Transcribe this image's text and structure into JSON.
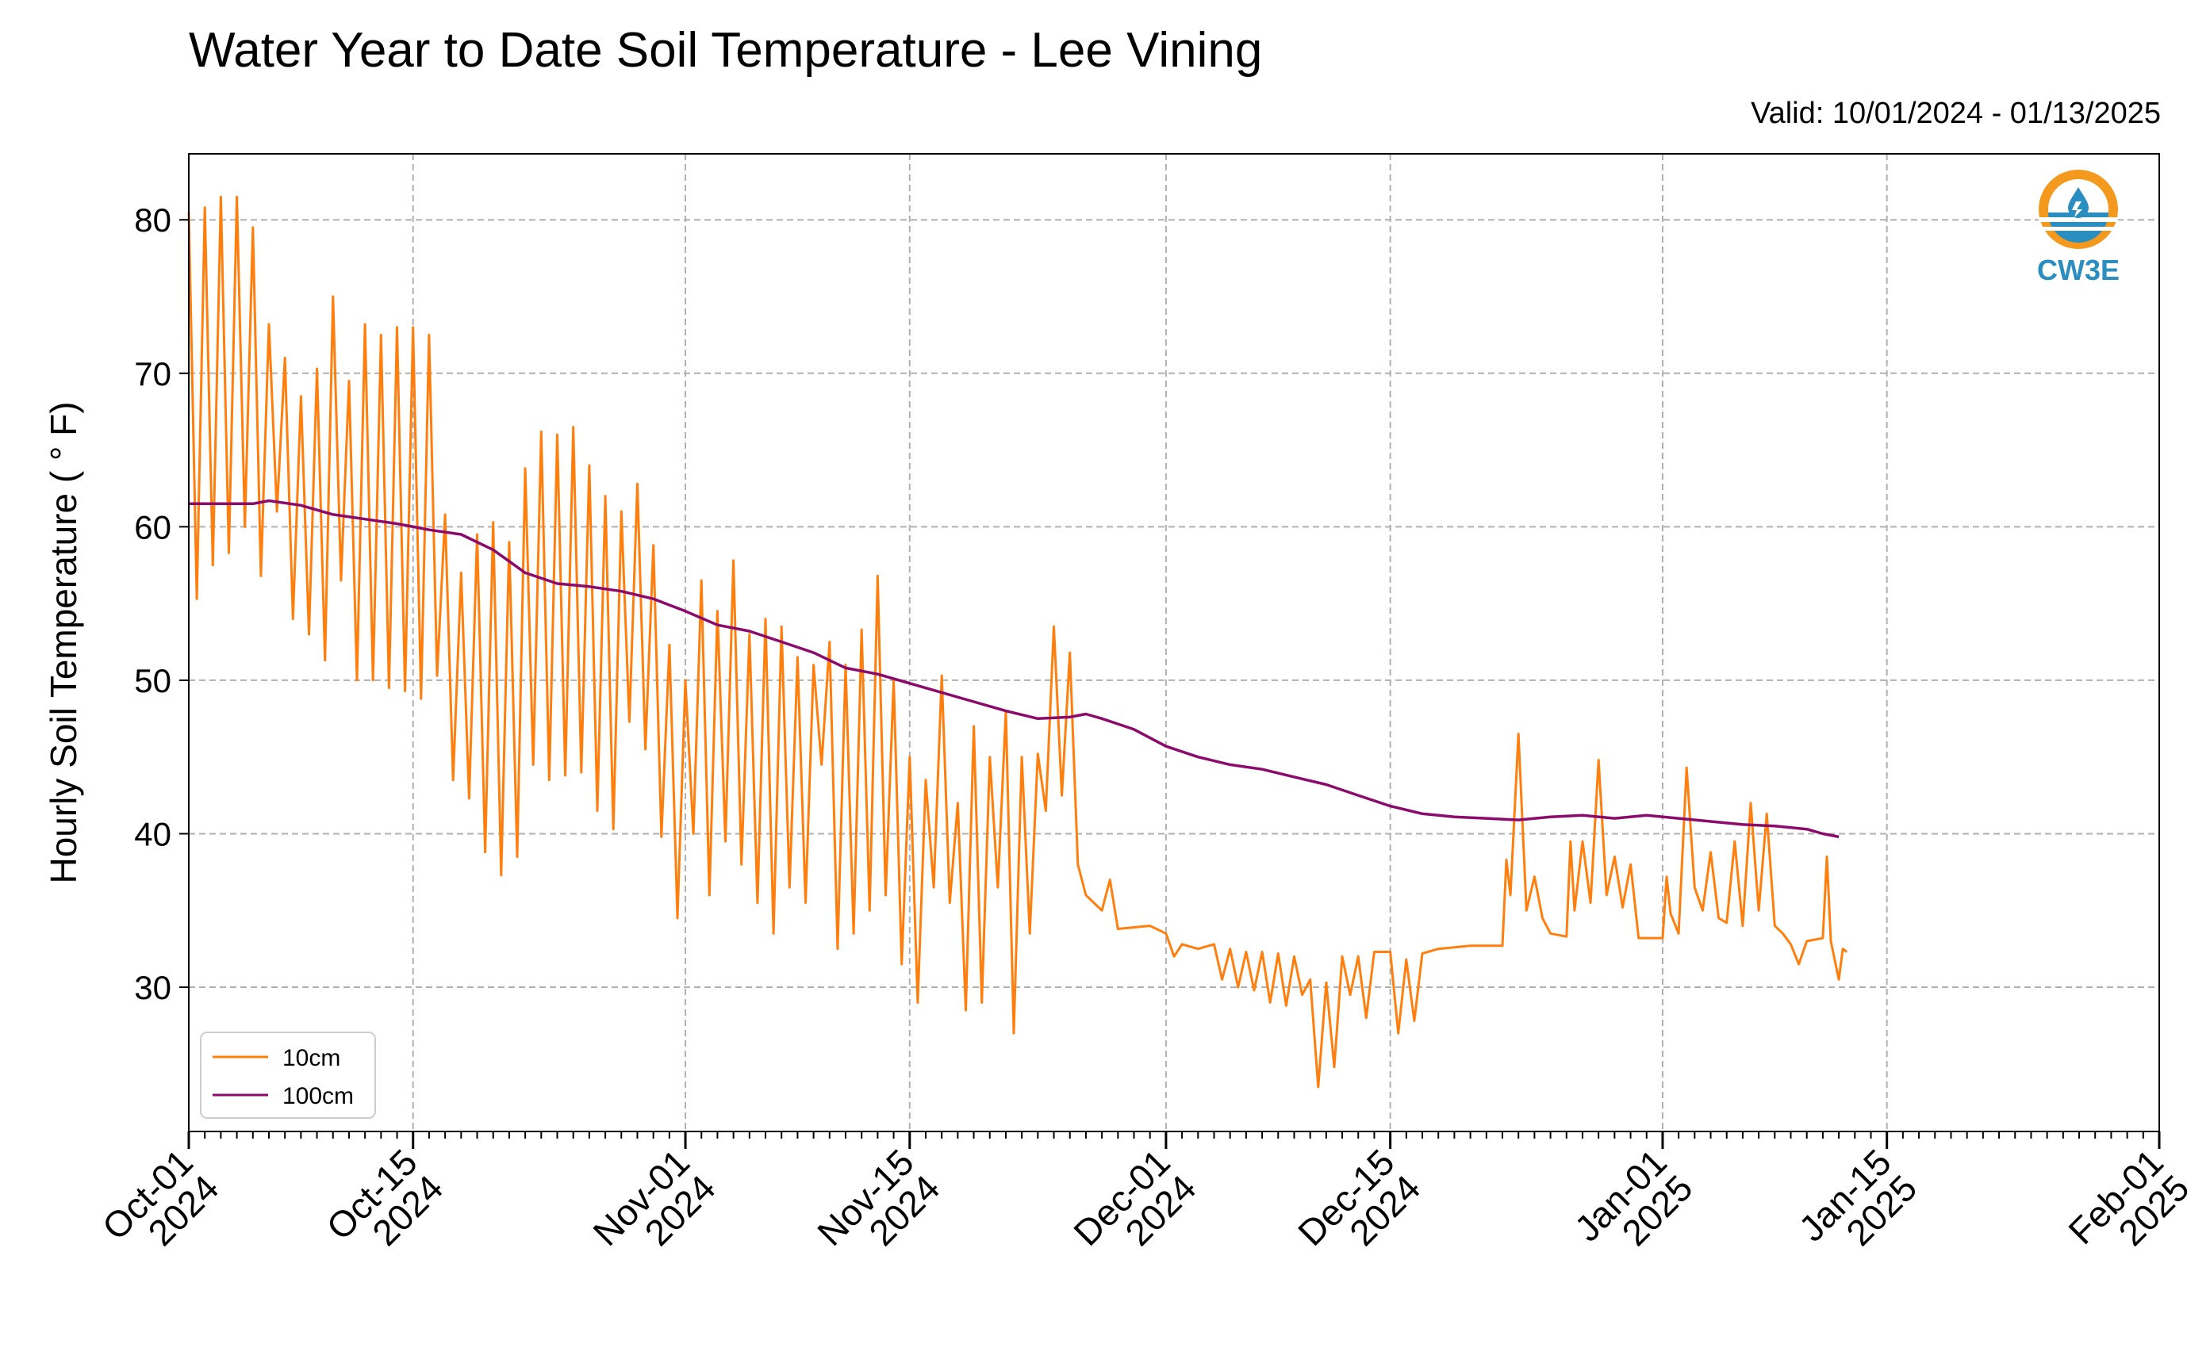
{
  "chart_data": {
    "type": "line",
    "title": "Water Year to Date Soil Temperature - Lee Vining",
    "subtitle": "Valid: 10/01/2024 - 01/13/2025",
    "ylabel": "Hourly Soil Temperature ( ° F)",
    "xlabel": "",
    "ylim": [
      20.6,
      84.3
    ],
    "xlim": [
      "2024-10-01",
      "2025-02-01"
    ],
    "yticks": [
      30,
      40,
      50,
      60,
      70,
      80
    ],
    "xticks": [
      {
        "date": "2024-10-01",
        "label1": "Oct-01",
        "label2": "2024"
      },
      {
        "date": "2024-10-15",
        "label1": "Oct-15",
        "label2": "2024"
      },
      {
        "date": "2024-11-01",
        "label1": "Nov-01",
        "label2": "2024"
      },
      {
        "date": "2024-11-15",
        "label1": "Nov-15",
        "label2": "2024"
      },
      {
        "date": "2024-12-01",
        "label1": "Dec-01",
        "label2": "2024"
      },
      {
        "date": "2024-12-15",
        "label1": "Dec-15",
        "label2": "2024"
      },
      {
        "date": "2025-01-01",
        "label1": "Jan-01",
        "label2": "2025"
      },
      {
        "date": "2025-01-15",
        "label1": "Jan-15",
        "label2": "2025"
      },
      {
        "date": "2025-02-01",
        "label1": "Feb-01",
        "label2": "2025"
      }
    ],
    "grid": true,
    "legend_position": "lower-left",
    "series": [
      {
        "name": "10cm",
        "color": "#ff7f0e",
        "points": [
          [
            "2024-10-01",
            80.5
          ],
          [
            "2024-10-01T12:00",
            55.3
          ],
          [
            "2024-10-02",
            80.8
          ],
          [
            "2024-10-02T12:00",
            57.5
          ],
          [
            "2024-10-03",
            81.5
          ],
          [
            "2024-10-03T12:00",
            58.3
          ],
          [
            "2024-10-04",
            81.5
          ],
          [
            "2024-10-04T12:00",
            60.0
          ],
          [
            "2024-10-05",
            79.5
          ],
          [
            "2024-10-05T12:00",
            56.8
          ],
          [
            "2024-10-06",
            73.2
          ],
          [
            "2024-10-06T12:00",
            61.0
          ],
          [
            "2024-10-07",
            71.0
          ],
          [
            "2024-10-07T12:00",
            54.0
          ],
          [
            "2024-10-08",
            68.5
          ],
          [
            "2024-10-08T12:00",
            53.0
          ],
          [
            "2024-10-09",
            70.3
          ],
          [
            "2024-10-09T12:00",
            51.3
          ],
          [
            "2024-10-10",
            75.0
          ],
          [
            "2024-10-10T12:00",
            56.5
          ],
          [
            "2024-10-11",
            69.5
          ],
          [
            "2024-10-11T12:00",
            50.0
          ],
          [
            "2024-10-12",
            73.2
          ],
          [
            "2024-10-12T12:00",
            50.0
          ],
          [
            "2024-10-13",
            72.5
          ],
          [
            "2024-10-13T12:00",
            49.5
          ],
          [
            "2024-10-14",
            73.0
          ],
          [
            "2024-10-14T12:00",
            49.3
          ],
          [
            "2024-10-15",
            73.0
          ],
          [
            "2024-10-15T12:00",
            48.8
          ],
          [
            "2024-10-16",
            72.5
          ],
          [
            "2024-10-16T12:00",
            50.3
          ],
          [
            "2024-10-17",
            60.8
          ],
          [
            "2024-10-17T12:00",
            43.5
          ],
          [
            "2024-10-18",
            57.0
          ],
          [
            "2024-10-18T12:00",
            42.3
          ],
          [
            "2024-10-19",
            59.5
          ],
          [
            "2024-10-19T12:00",
            38.8
          ],
          [
            "2024-10-20",
            60.3
          ],
          [
            "2024-10-20T12:00",
            37.3
          ],
          [
            "2024-10-21",
            59.0
          ],
          [
            "2024-10-21T12:00",
            38.5
          ],
          [
            "2024-10-22",
            63.8
          ],
          [
            "2024-10-22T12:00",
            44.5
          ],
          [
            "2024-10-23",
            66.2
          ],
          [
            "2024-10-23T12:00",
            43.5
          ],
          [
            "2024-10-24",
            66.0
          ],
          [
            "2024-10-24T12:00",
            43.8
          ],
          [
            "2024-10-25",
            66.5
          ],
          [
            "2024-10-25T12:00",
            44.0
          ],
          [
            "2024-10-26",
            64.0
          ],
          [
            "2024-10-26T12:00",
            41.5
          ],
          [
            "2024-10-27",
            62.0
          ],
          [
            "2024-10-27T12:00",
            40.3
          ],
          [
            "2024-10-28",
            61.0
          ],
          [
            "2024-10-28T12:00",
            47.3
          ],
          [
            "2024-10-29",
            62.8
          ],
          [
            "2024-10-29T12:00",
            45.5
          ],
          [
            "2024-10-30",
            58.8
          ],
          [
            "2024-10-30T12:00",
            39.8
          ],
          [
            "2024-10-31",
            52.3
          ],
          [
            "2024-10-31T12:00",
            34.5
          ],
          [
            "2024-11-01",
            50.0
          ],
          [
            "2024-11-01T12:00",
            40.0
          ],
          [
            "2024-11-02",
            56.5
          ],
          [
            "2024-11-02T12:00",
            36.0
          ],
          [
            "2024-11-03",
            54.5
          ],
          [
            "2024-11-03T12:00",
            39.5
          ],
          [
            "2024-11-04",
            57.8
          ],
          [
            "2024-11-04T12:00",
            38.0
          ],
          [
            "2024-11-05",
            53.0
          ],
          [
            "2024-11-05T12:00",
            35.5
          ],
          [
            "2024-11-06",
            54.0
          ],
          [
            "2024-11-06T12:00",
            33.5
          ],
          [
            "2024-11-07",
            53.5
          ],
          [
            "2024-11-07T12:00",
            36.5
          ],
          [
            "2024-11-08",
            51.5
          ],
          [
            "2024-11-08T12:00",
            35.5
          ],
          [
            "2024-11-09",
            51.0
          ],
          [
            "2024-11-09T12:00",
            44.5
          ],
          [
            "2024-11-10",
            52.5
          ],
          [
            "2024-11-10T12:00",
            32.5
          ],
          [
            "2024-11-11",
            51.0
          ],
          [
            "2024-11-11T12:00",
            33.5
          ],
          [
            "2024-11-12",
            53.3
          ],
          [
            "2024-11-12T12:00",
            35.0
          ],
          [
            "2024-11-13",
            56.8
          ],
          [
            "2024-11-13T12:00",
            36.0
          ],
          [
            "2024-11-14",
            50.0
          ],
          [
            "2024-11-14T12:00",
            31.5
          ],
          [
            "2024-11-15",
            45.0
          ],
          [
            "2024-11-15T12:00",
            29.0
          ],
          [
            "2024-11-16",
            43.5
          ],
          [
            "2024-11-16T12:00",
            36.5
          ],
          [
            "2024-11-17",
            50.3
          ],
          [
            "2024-11-17T12:00",
            35.5
          ],
          [
            "2024-11-18",
            42.0
          ],
          [
            "2024-11-18T12:00",
            28.5
          ],
          [
            "2024-11-19",
            47.0
          ],
          [
            "2024-11-19T12:00",
            29.0
          ],
          [
            "2024-11-20",
            45.0
          ],
          [
            "2024-11-20T12:00",
            36.5
          ],
          [
            "2024-11-21",
            48.0
          ],
          [
            "2024-11-21T12:00",
            27.0
          ],
          [
            "2024-11-22",
            45.0
          ],
          [
            "2024-11-22T12:00",
            33.5
          ],
          [
            "2024-11-23",
            45.2
          ],
          [
            "2024-11-23T12:00",
            41.5
          ],
          [
            "2024-11-24",
            53.5
          ],
          [
            "2024-11-24T12:00",
            42.5
          ],
          [
            "2024-11-25",
            51.8
          ],
          [
            "2024-11-25T12:00",
            38.0
          ],
          [
            "2024-11-26",
            36.0
          ],
          [
            "2024-11-27",
            35.0
          ],
          [
            "2024-11-27T12:00",
            37.0
          ],
          [
            "2024-11-28",
            33.8
          ],
          [
            "2024-11-30",
            34.0
          ],
          [
            "2024-12-01",
            33.5
          ],
          [
            "2024-12-01T12:00",
            32.0
          ],
          [
            "2024-12-02",
            32.8
          ],
          [
            "2024-12-03",
            32.5
          ],
          [
            "2024-12-04",
            32.8
          ],
          [
            "2024-12-04T12:00",
            30.5
          ],
          [
            "2024-12-05",
            32.5
          ],
          [
            "2024-12-05T12:00",
            30.0
          ],
          [
            "2024-12-06",
            32.3
          ],
          [
            "2024-12-06T12:00",
            29.8
          ],
          [
            "2024-12-07",
            32.3
          ],
          [
            "2024-12-07T12:00",
            29.0
          ],
          [
            "2024-12-08",
            32.2
          ],
          [
            "2024-12-08T12:00",
            28.8
          ],
          [
            "2024-12-09",
            32.0
          ],
          [
            "2024-12-09T12:00",
            29.5
          ],
          [
            "2024-12-10",
            30.5
          ],
          [
            "2024-12-10T12:00",
            23.5
          ],
          [
            "2024-12-11",
            30.3
          ],
          [
            "2024-12-11T12:00",
            24.8
          ],
          [
            "2024-12-12",
            32.0
          ],
          [
            "2024-12-12T12:00",
            29.5
          ],
          [
            "2024-12-13",
            32.0
          ],
          [
            "2024-12-13T12:00",
            28.0
          ],
          [
            "2024-12-14",
            32.3
          ],
          [
            "2024-12-15",
            32.3
          ],
          [
            "2024-12-15T12:00",
            27.0
          ],
          [
            "2024-12-16",
            31.8
          ],
          [
            "2024-12-16T12:00",
            27.8
          ],
          [
            "2024-12-17",
            32.2
          ],
          [
            "2024-12-18",
            32.5
          ],
          [
            "2024-12-20",
            32.7
          ],
          [
            "2024-12-22",
            32.7
          ],
          [
            "2024-12-22T06:00",
            38.3
          ],
          [
            "2024-12-22T12:00",
            36.0
          ],
          [
            "2024-12-23",
            46.5
          ],
          [
            "2024-12-23T12:00",
            35.0
          ],
          [
            "2024-12-24",
            37.2
          ],
          [
            "2024-12-24T12:00",
            34.5
          ],
          [
            "2024-12-25",
            33.5
          ],
          [
            "2024-12-26",
            33.3
          ],
          [
            "2024-12-26T06:00",
            39.5
          ],
          [
            "2024-12-26T12:00",
            35.0
          ],
          [
            "2024-12-27",
            39.5
          ],
          [
            "2024-12-27T12:00",
            35.5
          ],
          [
            "2024-12-28",
            44.8
          ],
          [
            "2024-12-28T12:00",
            36.0
          ],
          [
            "2024-12-29",
            38.5
          ],
          [
            "2024-12-29T12:00",
            35.2
          ],
          [
            "2024-12-30",
            38.0
          ],
          [
            "2024-12-30T12:00",
            33.2
          ],
          [
            "2025-01-01",
            33.2
          ],
          [
            "2025-01-01T06:00",
            37.2
          ],
          [
            "2025-01-01T12:00",
            34.8
          ],
          [
            "2025-01-02",
            33.5
          ],
          [
            "2025-01-02T12:00",
            44.3
          ],
          [
            "2025-01-03",
            36.5
          ],
          [
            "2025-01-03T12:00",
            35.0
          ],
          [
            "2025-01-04",
            38.8
          ],
          [
            "2025-01-04T12:00",
            34.5
          ],
          [
            "2025-01-05",
            34.2
          ],
          [
            "2025-01-05T12:00",
            39.5
          ],
          [
            "2025-01-06",
            34.0
          ],
          [
            "2025-01-06T12:00",
            42.0
          ],
          [
            "2025-01-07",
            35.0
          ],
          [
            "2025-01-07T12:00",
            41.3
          ],
          [
            "2025-01-08",
            34.0
          ],
          [
            "2025-01-08T12:00",
            33.5
          ],
          [
            "2025-01-09",
            32.8
          ],
          [
            "2025-01-09T12:00",
            31.5
          ],
          [
            "2025-01-10",
            33.0
          ],
          [
            "2025-01-11",
            33.2
          ],
          [
            "2025-01-11T06:00",
            38.5
          ],
          [
            "2025-01-11T12:00",
            33.0
          ],
          [
            "2025-01-12",
            30.5
          ],
          [
            "2025-01-12T06:00",
            32.5
          ],
          [
            "2025-01-12T12:00",
            32.3
          ]
        ]
      },
      {
        "name": "100cm",
        "color": "#8b0a6b",
        "points": [
          [
            "2024-10-01",
            61.5
          ],
          [
            "2024-10-05",
            61.5
          ],
          [
            "2024-10-06",
            61.7
          ],
          [
            "2024-10-08",
            61.4
          ],
          [
            "2024-10-10",
            60.8
          ],
          [
            "2024-10-12",
            60.5
          ],
          [
            "2024-10-14",
            60.2
          ],
          [
            "2024-10-16",
            59.8
          ],
          [
            "2024-10-18",
            59.5
          ],
          [
            "2024-10-20",
            58.5
          ],
          [
            "2024-10-22",
            57.0
          ],
          [
            "2024-10-24",
            56.3
          ],
          [
            "2024-10-26",
            56.1
          ],
          [
            "2024-10-28",
            55.8
          ],
          [
            "2024-10-30",
            55.3
          ],
          [
            "2024-11-01",
            54.5
          ],
          [
            "2024-11-03",
            53.6
          ],
          [
            "2024-11-05",
            53.2
          ],
          [
            "2024-11-07",
            52.5
          ],
          [
            "2024-11-09",
            51.8
          ],
          [
            "2024-11-11",
            50.8
          ],
          [
            "2024-11-13",
            50.4
          ],
          [
            "2024-11-15",
            49.8
          ],
          [
            "2024-11-17",
            49.2
          ],
          [
            "2024-11-19",
            48.6
          ],
          [
            "2024-11-21",
            48.0
          ],
          [
            "2024-11-23",
            47.5
          ],
          [
            "2024-11-25",
            47.6
          ],
          [
            "2024-11-26",
            47.8
          ],
          [
            "2024-11-27",
            47.5
          ],
          [
            "2024-11-29",
            46.8
          ],
          [
            "2024-12-01",
            45.7
          ],
          [
            "2024-12-03",
            45.0
          ],
          [
            "2024-12-05",
            44.5
          ],
          [
            "2024-12-07",
            44.2
          ],
          [
            "2024-12-09",
            43.7
          ],
          [
            "2024-12-11",
            43.2
          ],
          [
            "2024-12-13",
            42.5
          ],
          [
            "2024-12-15",
            41.8
          ],
          [
            "2024-12-17",
            41.3
          ],
          [
            "2024-12-19",
            41.1
          ],
          [
            "2024-12-21",
            41.0
          ],
          [
            "2024-12-23",
            40.9
          ],
          [
            "2024-12-25",
            41.1
          ],
          [
            "2024-12-27",
            41.2
          ],
          [
            "2024-12-29",
            41.0
          ],
          [
            "2024-12-31",
            41.2
          ],
          [
            "2025-01-02",
            41.0
          ],
          [
            "2025-01-04",
            40.8
          ],
          [
            "2025-01-06",
            40.6
          ],
          [
            "2025-01-08",
            40.5
          ],
          [
            "2025-01-10",
            40.3
          ],
          [
            "2025-01-11",
            40.0
          ],
          [
            "2025-01-12",
            39.8
          ]
        ]
      }
    ]
  },
  "colors": {
    "accent": "#ff7f0e",
    "secondary": "#8b0a6b",
    "logo_orange": "#f39a1e",
    "logo_blue": "#2a8ec0"
  },
  "logo": {
    "text": "CW3E",
    "icon": "water-drop-logo-icon"
  }
}
